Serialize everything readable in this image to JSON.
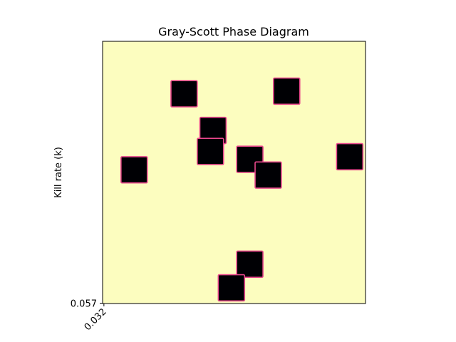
{
  "chart_data": {
    "type": "heatmap",
    "title": "Gray-Scott Phase Diagram",
    "xlabel": "",
    "ylabel": "Kill rate (k)",
    "x_ticks": [
      {
        "value": 0.032,
        "label": "0.032"
      }
    ],
    "y_ticks": [
      {
        "value": 0.057,
        "label": "0.057"
      }
    ],
    "grid": false,
    "legend": "none",
    "colormap": "magma",
    "field_range": [
      0.0,
      1.0
    ],
    "grid_size": [
      100,
      100
    ],
    "background_value": 1.0,
    "background_color": "#fcfdbf",
    "spot_color": "#000004",
    "edge_color": "#e8478c",
    "spots": [
      {
        "col_range": [
          7,
          17
        ],
        "row_range": [
          44,
          54
        ],
        "value": 0.0
      },
      {
        "col_range": [
          26,
          36
        ],
        "row_range": [
          15,
          25
        ],
        "value": 0.0
      },
      {
        "col_range": [
          37,
          47
        ],
        "row_range": [
          29,
          39
        ],
        "value": 0.0
      },
      {
        "col_range": [
          36,
          46
        ],
        "row_range": [
          37,
          47
        ],
        "value": 0.0
      },
      {
        "col_range": [
          51,
          61
        ],
        "row_range": [
          40,
          50
        ],
        "value": 0.0
      },
      {
        "col_range": [
          58,
          68
        ],
        "row_range": [
          46,
          56
        ],
        "value": 0.0
      },
      {
        "col_range": [
          65,
          75
        ],
        "row_range": [
          14,
          24
        ],
        "value": 0.0
      },
      {
        "col_range": [
          89,
          99
        ],
        "row_range": [
          39,
          49
        ],
        "value": 0.0
      },
      {
        "col_range": [
          51,
          61
        ],
        "row_range": [
          80,
          90
        ],
        "value": 0.0
      },
      {
        "col_range": [
          44,
          54
        ],
        "row_range": [
          89,
          99
        ],
        "value": 0.0
      }
    ]
  }
}
